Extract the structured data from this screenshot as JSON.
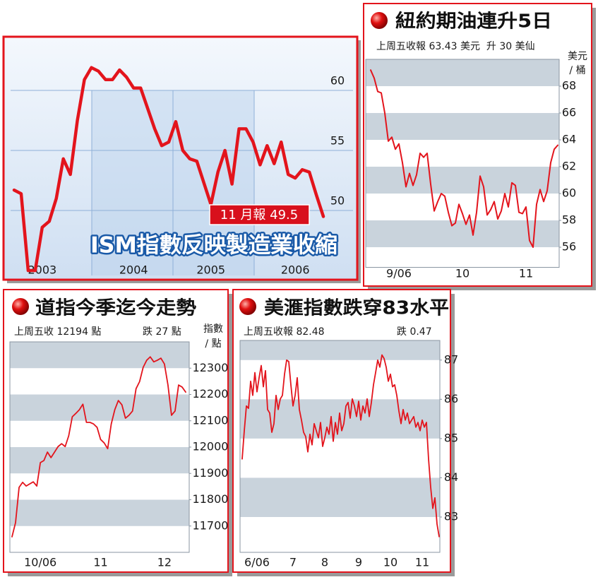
{
  "chart_data": [
    {
      "type": "line",
      "title": "ISM指數反映製造業收縮",
      "annotation": "11 月報 49.5",
      "categories": [
        null,
        null,
        null,
        null,
        "2003",
        null,
        null,
        null,
        null,
        null,
        null,
        null,
        null,
        null,
        null,
        null,
        null,
        "2004",
        null,
        null,
        null,
        null,
        null,
        null,
        null,
        null,
        null,
        null,
        "2005",
        null,
        null,
        null,
        null,
        null,
        null,
        null,
        null,
        null,
        null,
        null,
        "2006",
        null,
        null,
        null,
        null
      ],
      "values": [
        51.7,
        51.4,
        45.0,
        45.0,
        48.6,
        49.1,
        51.0,
        54.3,
        53.0,
        57.5,
        60.9,
        61.9,
        61.6,
        60.9,
        60.9,
        61.7,
        61.1,
        60.2,
        60.2,
        58.5,
        56.8,
        55.4,
        55.7,
        57.4,
        55.0,
        54.3,
        54.1,
        52.3,
        50.5,
        53.2,
        55.0,
        52.2,
        56.8,
        56.8,
        55.7,
        53.8,
        55.4,
        53.9,
        55.7,
        53.0,
        52.7,
        53.4,
        53.2,
        51.3,
        49.5
      ],
      "color": "#e3141c",
      "ylim": [
        44.5,
        64
      ],
      "yticks": [
        50,
        55,
        60
      ],
      "grid": true,
      "bands": false
    },
    {
      "type": "line",
      "title": "紐約期油連升5日",
      "subtitle": "上周五收報 63.43 美元  升 30 美仙",
      "unit": [
        "美元",
        "/ 桶"
      ],
      "categories": [
        null,
        null,
        null,
        null,
        null,
        null,
        null,
        null,
        "9/06",
        null,
        null,
        null,
        null,
        null,
        null,
        null,
        null,
        null,
        null,
        null,
        null,
        null,
        null,
        null,
        null,
        null,
        "10",
        null,
        null,
        null,
        null,
        null,
        null,
        null,
        null,
        null,
        null,
        null,
        null,
        null,
        null,
        null,
        null,
        null,
        "11",
        null,
        null,
        null,
        null,
        null,
        null,
        null,
        null,
        null
      ],
      "values": [
        69.2,
        68.6,
        67.6,
        67.5,
        66.0,
        63.9,
        64.2,
        63.3,
        63.7,
        62.3,
        60.5,
        61.5,
        60.6,
        61.4,
        63.0,
        62.7,
        63.0,
        60.7,
        58.7,
        59.4,
        60.0,
        59.8,
        58.6,
        57.6,
        57.8,
        59.2,
        58.5,
        57.7,
        58.4,
        56.9,
        58.6,
        61.3,
        60.5,
        58.4,
        58.8,
        59.4,
        58.1,
        58.7,
        60.0,
        59.0,
        60.8,
        60.6,
        58.6,
        58.5,
        59.0,
        56.5,
        56.0,
        59.2,
        60.3,
        59.4,
        60.2,
        62.3,
        63.3,
        63.6
      ],
      "color": "#e3141c",
      "ylim": [
        54.5,
        70
      ],
      "yticks": [
        56,
        58,
        60,
        62,
        64,
        66,
        68
      ],
      "grid": false,
      "bands": true,
      "band_color": "#c9d3dc"
    },
    {
      "type": "line",
      "title": "道指今季迄今走勢",
      "subtitle": "上周五收 12194 點",
      "change": "跌 27 點",
      "unit": [
        "指數",
        "/ 點"
      ],
      "categories": [
        null,
        null,
        null,
        null,
        null,
        null,
        null,
        null,
        "10/06",
        null,
        null,
        null,
        null,
        null,
        null,
        null,
        null,
        null,
        null,
        null,
        null,
        null,
        null,
        null,
        null,
        "11",
        null,
        null,
        null,
        null,
        null,
        null,
        null,
        null,
        null,
        null,
        null,
        null,
        null,
        null,
        null,
        null,
        null,
        "12",
        null,
        null,
        null,
        null,
        null,
        null
      ],
      "values": [
        11659,
        11713,
        11847,
        11866,
        11852,
        11860,
        11868,
        11852,
        11941,
        11949,
        11981,
        11960,
        11981,
        12002,
        12013,
        12002,
        12043,
        12115,
        12128,
        12142,
        12163,
        12094,
        12094,
        12088,
        12075,
        12029,
        12016,
        11994,
        12088,
        12142,
        12177,
        12161,
        12110,
        12121,
        12137,
        12222,
        12249,
        12303,
        12330,
        12343,
        12324,
        12330,
        12338,
        12316,
        12236,
        12121,
        12137,
        12236,
        12228,
        12209
      ],
      "color": "#e3141c",
      "ylim": [
        11600,
        12400
      ],
      "yticks": [
        11700,
        11800,
        11900,
        12000,
        12100,
        12200,
        12300
      ],
      "grid": false,
      "bands": true,
      "band_color": "#c9d3dc"
    },
    {
      "type": "line",
      "title": "美滙指數跌穿83水平",
      "subtitle": "上周五收報 82.48",
      "change": "跌 0.47",
      "categories": [
        null,
        null,
        null,
        null,
        null,
        null,
        null,
        "6/06",
        null,
        null,
        null,
        null,
        null,
        null,
        null,
        null,
        null,
        null,
        null,
        null,
        null,
        null,
        null,
        null,
        "7",
        null,
        null,
        null,
        null,
        null,
        null,
        null,
        null,
        null,
        null,
        null,
        null,
        null,
        null,
        "8",
        null,
        null,
        null,
        null,
        null,
        null,
        null,
        null,
        null,
        null,
        null,
        null,
        null,
        null,
        null,
        "9",
        null,
        null,
        null,
        null,
        null,
        null,
        null,
        null,
        null,
        null,
        null,
        null,
        null,
        null,
        "10",
        null,
        null,
        null,
        null,
        null,
        null,
        null,
        null,
        null,
        null,
        null,
        null,
        null,
        null,
        "11",
        null,
        null,
        null,
        null,
        null,
        null,
        null,
        null
      ],
      "values": [
        84.48,
        85.2,
        85.83,
        85.77,
        86.46,
        86.1,
        86.68,
        86.19,
        86.55,
        86.86,
        86.32,
        86.73,
        85.74,
        85.65,
        85.16,
        85.38,
        86.1,
        85.74,
        86.01,
        86.1,
        86.64,
        87.0,
        86.96,
        86.37,
        85.83,
        86.1,
        86.55,
        85.74,
        85.47,
        85.16,
        85.05,
        84.66,
        85.11,
        84.84,
        85.38,
        85.2,
        85.02,
        85.41,
        84.8,
        85.02,
        85.29,
        85.11,
        85.56,
        84.93,
        85.41,
        85.11,
        85.65,
        85.2,
        85.38,
        85.83,
        85.92,
        85.52,
        86.01,
        85.83,
        85.56,
        85.95,
        85.47,
        85.83,
        85.65,
        86.01,
        85.56,
        85.92,
        86.37,
        86.68,
        87.0,
        86.82,
        87.13,
        87.04,
        86.82,
        86.46,
        86.64,
        86.32,
        86.37,
        86.1,
        85.7,
        85.38,
        85.74,
        85.47,
        85.65,
        85.38,
        85.47,
        85.56,
        85.29,
        85.41,
        85.2,
        85.47,
        85.29,
        85.41,
        84.48,
        83.76,
        83.22,
        83.49,
        82.82,
        82.5
      ],
      "color": "#e3141c",
      "ylim": [
        82.1,
        87.5
      ],
      "yticks": [
        83,
        84,
        85,
        86,
        87
      ],
      "grid": false,
      "bands": true,
      "band_color": "#c9d3dc"
    }
  ]
}
